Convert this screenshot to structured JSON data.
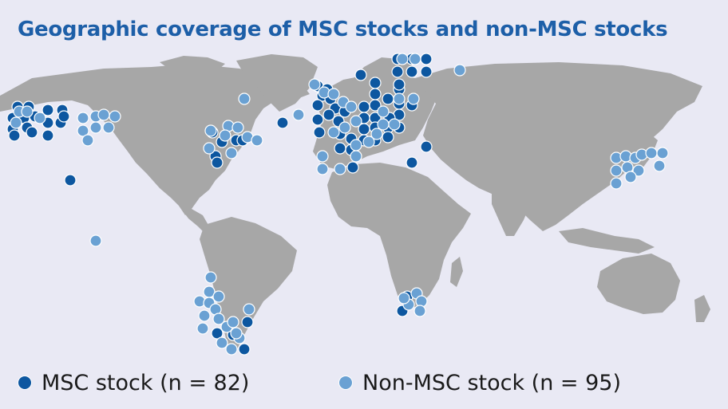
{
  "title": "Geographic coverage of MSC stocks and non-MSC stocks",
  "colors": {
    "background": "#e9e9f4",
    "land": "#a7a7a7",
    "msc": "#0d57a0",
    "non_msc": "#6aa1d3",
    "title": "#1d5fa8"
  },
  "legend": {
    "msc_label": "MSC stock (n = 82)",
    "non_msc_label": "Non-MSC stock (n = 95)"
  }
}
